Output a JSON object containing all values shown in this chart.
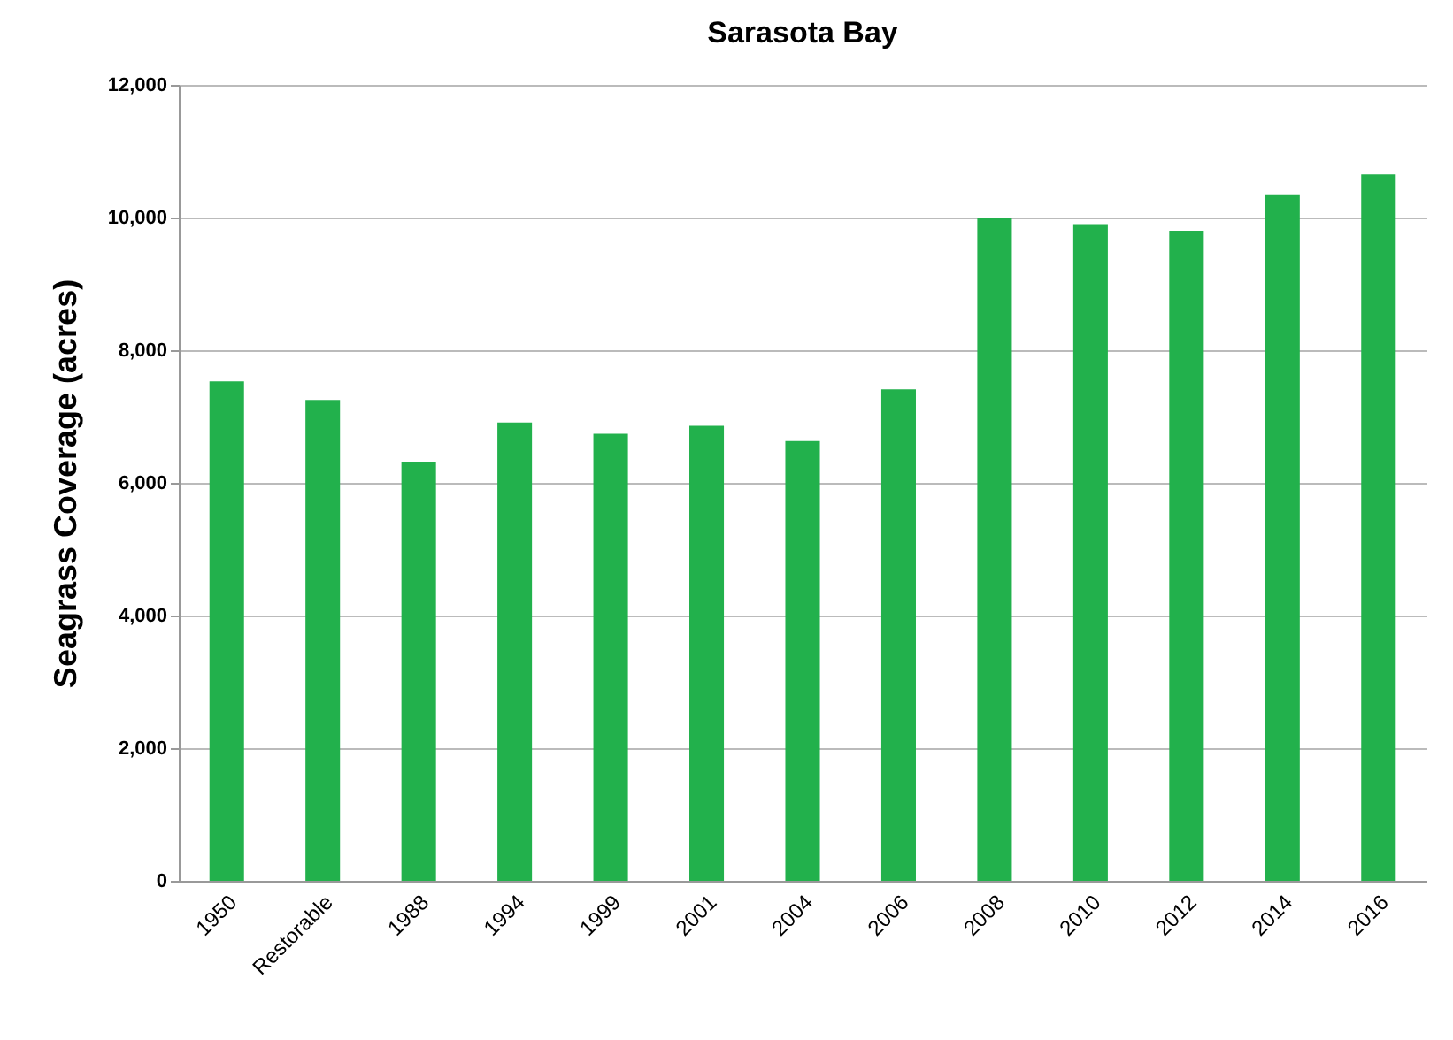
{
  "chart_data": {
    "type": "bar",
    "title": "Sarasota Bay",
    "ylabel": "Seagrass Coverage (acres)",
    "categories": [
      "1950",
      "Restorable",
      "1988",
      "1994",
      "1999",
      "2001",
      "2004",
      "2006",
      "2008",
      "2010",
      "2012",
      "2014",
      "2016"
    ],
    "values": [
      7530,
      7250,
      6320,
      6910,
      6740,
      6860,
      6630,
      7410,
      10000,
      9900,
      9800,
      10350,
      10650
    ],
    "color": "#22b14c",
    "ylim": [
      0,
      12000
    ],
    "yticks": [
      0,
      {
        "value": 2000,
        "label": "2,000"
      },
      {
        "value": 4000,
        "label": "4,000"
      },
      {
        "value": 6000,
        "label": "6,000"
      },
      {
        "value": 8000,
        "label": "8,000"
      },
      {
        "value": 10000,
        "label": "10,000"
      },
      {
        "value": 12000,
        "label": "12,000"
      }
    ],
    "grid": "y"
  }
}
